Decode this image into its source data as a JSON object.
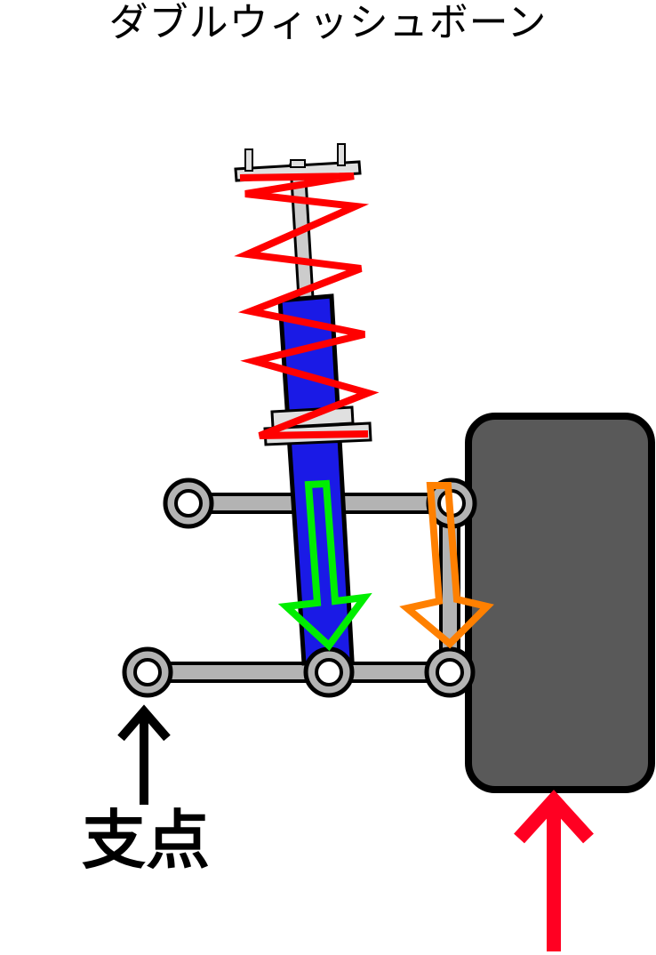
{
  "title": "ダブルウィッシュボーン",
  "fulcrum_label": "支点",
  "colors": {
    "spring": "#ff0000",
    "damper": "#1a1ae6",
    "arm": "#b3b3b3",
    "tire": "#595959",
    "green_arrow": "#00ee00",
    "orange_arrow": "#ff8000",
    "force_arrow": "#ff0022",
    "outline": "#000000"
  }
}
